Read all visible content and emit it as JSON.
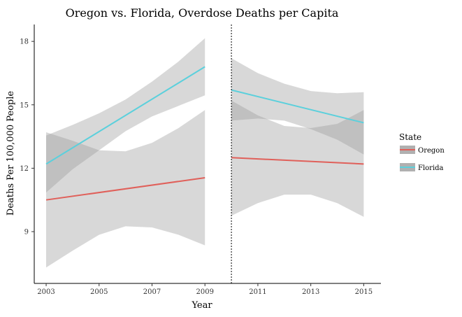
{
  "chart_data": {
    "type": "line",
    "title": "Oregon vs. Florida, Overdose Deaths per Capita",
    "xlabel": "Year",
    "ylabel": "Deaths Per 100,000 People",
    "xlim": [
      2002.55,
      2015.65
    ],
    "ylim": [
      6.55,
      18.8
    ],
    "x_ticks": [
      2003,
      2005,
      2007,
      2009,
      2011,
      2013,
      2015
    ],
    "y_ticks": [
      9,
      12,
      15,
      18
    ],
    "cutoff_x": 2010,
    "grid": false,
    "legend": {
      "title": "State",
      "position": "right"
    },
    "series": [
      {
        "name": "Oregon",
        "color": "#e0605a",
        "segments": [
          {
            "x": [
              2003,
              2009
            ],
            "y": [
              10.5,
              11.55
            ],
            "band_x": [
              2003,
              2004,
              2005,
              2006,
              2007,
              2008,
              2009
            ],
            "band_lower": [
              7.3,
              8.1,
              8.85,
              9.25,
              9.2,
              8.85,
              8.35
            ],
            "band_upper": [
              13.7,
              13.3,
              12.85,
              12.8,
              13.2,
              13.9,
              14.75
            ]
          },
          {
            "x": [
              2010,
              2015
            ],
            "y": [
              12.5,
              12.2
            ],
            "band_x": [
              2010,
              2011,
              2012,
              2013,
              2014,
              2015
            ],
            "band_lower": [
              9.75,
              10.35,
              10.75,
              10.75,
              10.35,
              9.7
            ],
            "band_upper": [
              15.2,
              14.5,
              14.0,
              13.9,
              14.1,
              14.75
            ]
          }
        ]
      },
      {
        "name": "Florida",
        "color": "#5bd0dc",
        "segments": [
          {
            "x": [
              2003,
              2009
            ],
            "y": [
              12.2,
              16.8
            ],
            "band_x": [
              2003,
              2004,
              2005,
              2006,
              2007,
              2008,
              2009
            ],
            "band_lower": [
              10.85,
              11.95,
              12.85,
              13.75,
              14.45,
              14.95,
              15.45
            ],
            "band_upper": [
              13.55,
              14.05,
              14.6,
              15.25,
              16.1,
              17.05,
              18.15
            ]
          },
          {
            "x": [
              2010,
              2015
            ],
            "y": [
              15.7,
              14.15
            ],
            "band_x": [
              2010,
              2011,
              2012,
              2013,
              2014,
              2015
            ],
            "band_lower": [
              14.25,
              14.35,
              14.25,
              13.85,
              13.35,
              12.65
            ],
            "band_upper": [
              17.2,
              16.5,
              16.0,
              15.65,
              15.55,
              15.6
            ]
          }
        ]
      }
    ]
  }
}
